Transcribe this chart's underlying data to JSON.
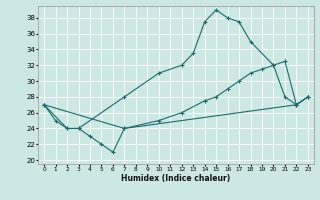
{
  "xlabel": "Humidex (Indice chaleur)",
  "bg_color": "#cde8e4",
  "grid_color": "#ffffff",
  "line_color": "#1a6b6b",
  "xlim": [
    -0.5,
    23.5
  ],
  "ylim": [
    19.5,
    39.5
  ],
  "xticks": [
    0,
    1,
    2,
    3,
    4,
    5,
    6,
    7,
    8,
    9,
    10,
    11,
    12,
    13,
    14,
    15,
    16,
    17,
    18,
    19,
    20,
    21,
    22,
    23
  ],
  "yticks": [
    20,
    22,
    24,
    26,
    28,
    30,
    32,
    34,
    36,
    38
  ],
  "series": [
    {
      "x": [
        0,
        2,
        3,
        4,
        5,
        6,
        7,
        22,
        23
      ],
      "y": [
        27,
        24,
        24,
        23,
        22,
        21,
        24,
        27,
        28
      ]
    },
    {
      "x": [
        0,
        1,
        2,
        3,
        7,
        10,
        12,
        13,
        14,
        15,
        16,
        17,
        18,
        20,
        21,
        22,
        23
      ],
      "y": [
        27,
        25,
        24,
        24,
        28,
        31,
        32,
        33.5,
        37.5,
        39,
        38,
        37.5,
        35,
        32,
        28,
        27,
        28
      ]
    },
    {
      "x": [
        0,
        7,
        10,
        12,
        14,
        15,
        16,
        17,
        18,
        19,
        20,
        21,
        22,
        23
      ],
      "y": [
        27,
        24,
        25,
        26,
        27.5,
        28,
        29,
        30,
        31,
        31.5,
        32,
        32.5,
        27,
        28
      ]
    }
  ]
}
